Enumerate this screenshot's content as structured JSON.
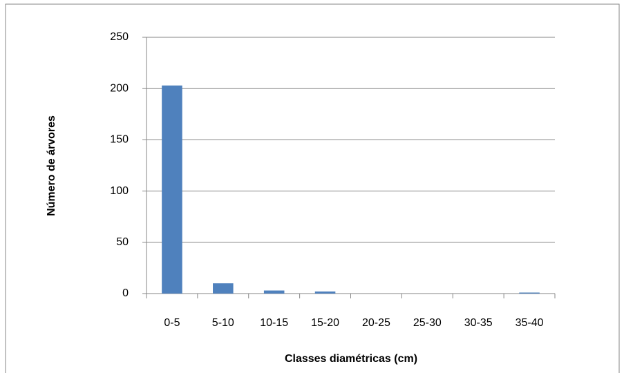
{
  "chart_data": {
    "type": "bar",
    "x_label": "Classes diamétricas (cm)",
    "y_label": "Número de árvores",
    "categories": [
      "0-5",
      "5-10",
      "10-15",
      "15-20",
      "20-25",
      "25-30",
      "30-35",
      "35-40"
    ],
    "values": [
      203,
      10,
      3,
      2,
      0,
      0,
      0,
      1
    ],
    "color": "#4f81bd",
    "ylim": [
      0,
      250
    ],
    "yticks": [
      0,
      50,
      100,
      150,
      200,
      250
    ],
    "grid": true
  }
}
